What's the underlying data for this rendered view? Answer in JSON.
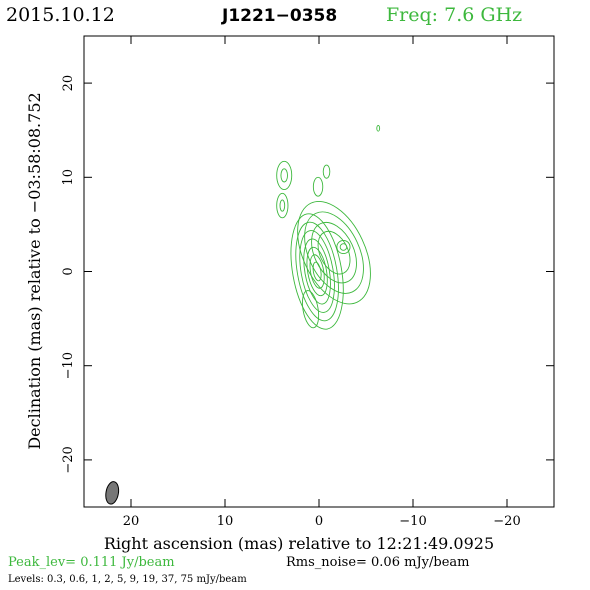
{
  "header": {
    "date": "2015.10.12",
    "source": "J1221−0358",
    "frequency": "Freq: 7.6 GHz"
  },
  "colors": {
    "contour": "#3db83d",
    "accent_text": "#3db83d",
    "text": "#000000",
    "beam_fill": "#777777"
  },
  "axes": {
    "xlabel": "Right ascension (mas) relative to 12:21:49.0925",
    "ylabel": "Declination (mas) relative to −03:58:08.752",
    "xlim": [
      25,
      -25
    ],
    "ylim": [
      -25,
      25
    ],
    "xticks": [
      {
        "value": 20,
        "label": "20"
      },
      {
        "value": 10,
        "label": "10"
      },
      {
        "value": 0,
        "label": "0"
      },
      {
        "value": -10,
        "label": "−10"
      },
      {
        "value": -20,
        "label": "−20"
      }
    ],
    "yticks": [
      {
        "value": 20,
        "label": "20"
      },
      {
        "value": 10,
        "label": "10"
      },
      {
        "value": 0,
        "label": "0"
      },
      {
        "value": -10,
        "label": "−10"
      },
      {
        "value": -20,
        "label": "−20"
      }
    ]
  },
  "footer": {
    "peak": "Peak_lev=  0.111 Jy/beam",
    "noise": "Rms_noise= 0.06 mJy/beam",
    "levels": "Levels: 0.3,  0.6,    1,    2,    5,    9,   19,   37,   75 mJy/beam"
  },
  "chart_data": {
    "type": "contour",
    "contour_levels_mJy": [
      0.3,
      0.6,
      1,
      2,
      5,
      9,
      19,
      37,
      75
    ],
    "beam": {
      "x": 22,
      "y": -23.5,
      "major": 2.4,
      "minor": 1.0,
      "pa_deg": 10
    },
    "components": [
      {
        "name": "core",
        "x": 0.2,
        "y": 0.0,
        "rings": [
          {
            "rx": 2.6,
            "ry": 6.2,
            "angle": -10
          },
          {
            "rx": 2.1,
            "ry": 5.3,
            "angle": -10
          },
          {
            "rx": 1.7,
            "ry": 4.4,
            "angle": -10
          },
          {
            "rx": 1.3,
            "ry": 3.5,
            "angle": -10
          },
          {
            "rx": 1.0,
            "ry": 2.6,
            "angle": -10
          },
          {
            "rx": 0.7,
            "ry": 1.8,
            "angle": -10
          },
          {
            "rx": 0.4,
            "ry": 1.0,
            "angle": -10
          }
        ]
      },
      {
        "name": "jet",
        "x": -1.6,
        "y": 2.0,
        "rings": [
          {
            "rx": 3.3,
            "ry": 5.8,
            "angle": -25
          },
          {
            "rx": 2.7,
            "ry": 4.6,
            "angle": -25
          },
          {
            "rx": 2.1,
            "ry": 3.4,
            "angle": -25
          },
          {
            "rx": 1.5,
            "ry": 2.4,
            "angle": -25
          }
        ]
      },
      {
        "name": "jet-knot",
        "x": -2.6,
        "y": 2.6,
        "rings": [
          {
            "rx": 0.7,
            "ry": 0.7,
            "angle": 0
          },
          {
            "rx": 0.35,
            "ry": 0.35,
            "angle": 0
          }
        ]
      },
      {
        "name": "southern-extension",
        "x": 0.9,
        "y": -4.0,
        "rings": [
          {
            "rx": 0.8,
            "ry": 2.0,
            "angle": -10
          }
        ]
      },
      {
        "name": "feature-north-upper",
        "x": 3.7,
        "y": 10.2,
        "rings": [
          {
            "rx": 0.8,
            "ry": 1.5,
            "angle": 0
          },
          {
            "rx": 0.35,
            "ry": 0.7,
            "angle": 0
          }
        ]
      },
      {
        "name": "feature-north-lower",
        "x": 3.9,
        "y": 7.0,
        "rings": [
          {
            "rx": 0.6,
            "ry": 1.3,
            "angle": 0
          },
          {
            "rx": 0.25,
            "ry": 0.6,
            "angle": 0
          }
        ]
      },
      {
        "name": "feature-mid-right",
        "x": -0.8,
        "y": 10.6,
        "rings": [
          {
            "rx": 0.35,
            "ry": 0.7,
            "angle": 0
          }
        ]
      },
      {
        "name": "feature-mid",
        "x": 0.1,
        "y": 9.0,
        "rings": [
          {
            "rx": 0.5,
            "ry": 1.0,
            "angle": 0
          }
        ]
      },
      {
        "name": "feature-far-east",
        "x": -6.3,
        "y": 15.2,
        "rings": [
          {
            "rx": 0.15,
            "ry": 0.3,
            "angle": 0
          }
        ]
      }
    ]
  }
}
